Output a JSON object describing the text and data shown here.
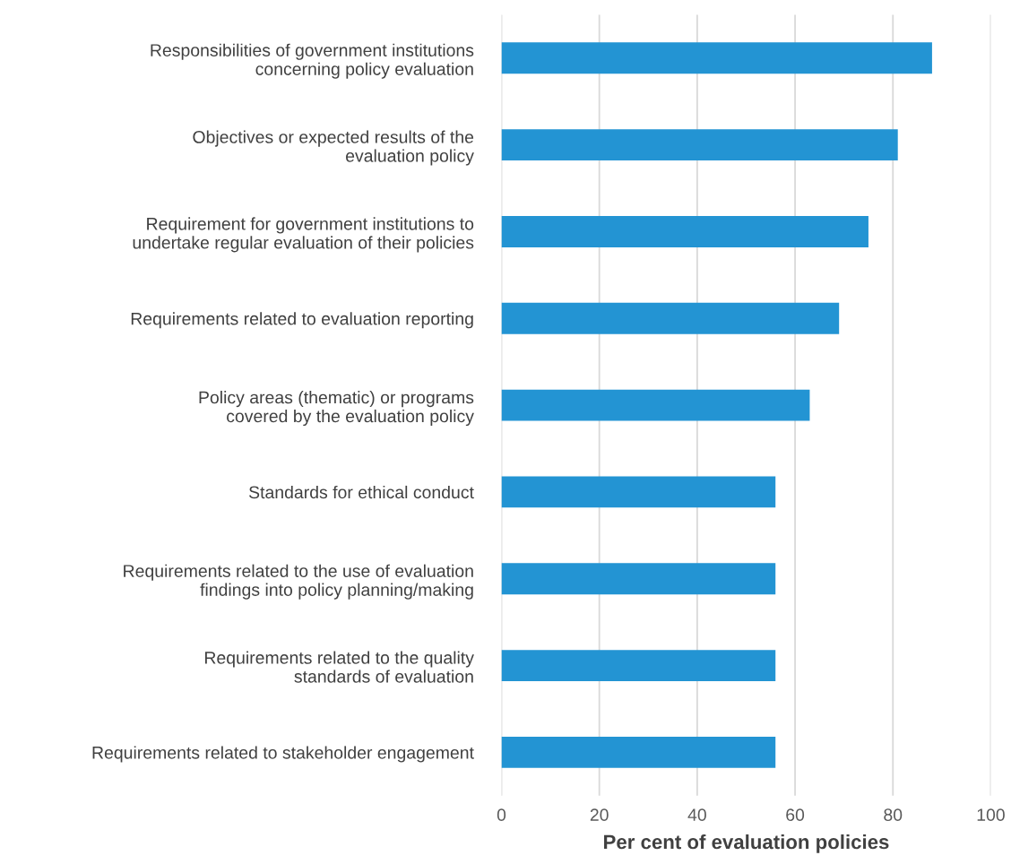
{
  "chart_data": {
    "type": "bar",
    "orientation": "horizontal",
    "categories": [
      "Responsibilities of government institutions\nconcerning policy evaluation",
      "Objectives or expected results of the\nevaluation policy",
      "Requirement for government institutions to\nundertake regular evaluation of their policies",
      "Requirements related to evaluation reporting",
      "Policy areas (thematic) or programs\ncovered by the evaluation policy",
      "Standards for ethical conduct",
      "Requirements related to the use of evaluation\nfindings into policy planning/making",
      "Requirements related to the quality\nstandards of evaluation",
      "Requirements related to stakeholder engagement"
    ],
    "values": [
      88,
      81,
      75,
      69,
      63,
      56,
      56,
      56,
      56
    ],
    "color": "#2394d3",
    "xlabel": "Per cent of evaluation policies",
    "xlim": [
      0,
      100
    ],
    "xticks": [
      0,
      20,
      40,
      60,
      80,
      100
    ],
    "grid": "x",
    "legend": false
  }
}
